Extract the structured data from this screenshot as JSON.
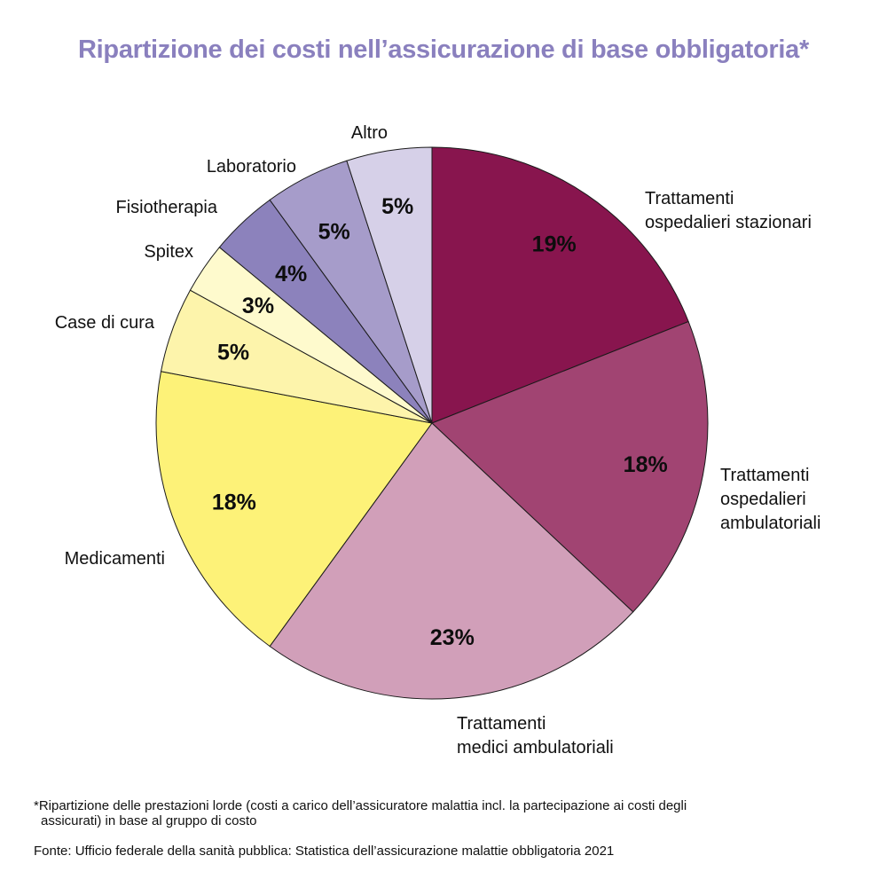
{
  "title": "Ripartizione dei costi nell’assicurazione di base obbligatoria*",
  "title_color": "#8a80be",
  "footnote": {
    "line1": "*Ripartizione delle prestazioni lorde (costi a carico dell’assicuratore malattia incl. la partecipazione ai costi degli",
    "line2": "assicurati) in base al gruppo di costo"
  },
  "source": "Fonte: Ufficio federale della sanità pubblica: Statistica dell’assicurazione malattie obbligatoria  2021",
  "chart_data": {
    "type": "pie",
    "title": "Ripartizione dei costi nell’assicurazione di base obbligatoria*",
    "start": "12 o'clock",
    "direction": "clockwise",
    "slices": [
      {
        "name": "Trattamenti ospedalieri stazionari",
        "label_lines": [
          "Trattamenti",
          "ospedalieri stazionari"
        ],
        "value": 19,
        "value_label": "19%",
        "color": "#88154e"
      },
      {
        "name": "Trattamenti ospedalieri ambulatoriali",
        "label_lines": [
          "Trattamenti",
          "ospedalieri",
          "ambulatoriali"
        ],
        "value": 18,
        "value_label": "18%",
        "color": "#a14472"
      },
      {
        "name": "Trattamenti medici ambulatoriali",
        "label_lines": [
          "Trattamenti",
          "medici ambulatoriali"
        ],
        "value": 23,
        "value_label": "23%",
        "color": "#d19fb9"
      },
      {
        "name": "Medicamenti",
        "label_lines": [
          "Medicamenti"
        ],
        "value": 18,
        "value_label": "18%",
        "color": "#fdf278"
      },
      {
        "name": "Case di cura",
        "label_lines": [
          "Case di cura"
        ],
        "value": 5,
        "value_label": "5%",
        "color": "#fdf4ab"
      },
      {
        "name": "Spitex",
        "label_lines": [
          "Spitex"
        ],
        "value": 3,
        "value_label": "3%",
        "color": "#fefacd"
      },
      {
        "name": "Fisiotherapia",
        "label_lines": [
          "Fisiotherapia"
        ],
        "value": 4,
        "value_label": "4%",
        "color": "#8c82bc"
      },
      {
        "name": "Laboratorio",
        "label_lines": [
          "Laboratorio"
        ],
        "value": 5,
        "value_label": "5%",
        "color": "#a69cca"
      },
      {
        "name": "Altro",
        "label_lines": [
          "Altro"
        ],
        "value": 5,
        "value_label": "5%",
        "color": "#d6d0e8"
      }
    ]
  }
}
